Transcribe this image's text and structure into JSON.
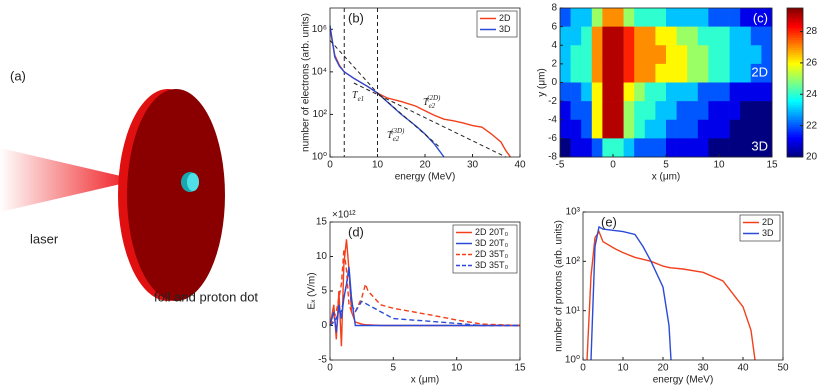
{
  "illustration": {
    "label": "(a)",
    "laser": "laser",
    "caption": "foil and proton dot"
  },
  "chart_data": [
    {
      "type": "line",
      "label": "(b)",
      "xlabel": "energy (MeV)",
      "ylabel": "number of electrons (arb. units)",
      "log_y": true,
      "legend": "upper right",
      "x": [
        0,
        1,
        2,
        3,
        5,
        8,
        10,
        12,
        15,
        18,
        20,
        22,
        24,
        26,
        28,
        30,
        32,
        34,
        36,
        37,
        38
      ],
      "series": [
        {
          "name": "2D",
          "color": "#f2401c",
          "values": [
            1000000,
            60000,
            20000,
            10000,
            5000,
            2000,
            1000,
            600,
            400,
            250,
            150,
            90,
            60,
            50,
            40,
            30,
            25,
            12,
            5,
            2,
            1
          ]
        },
        {
          "name": "3D",
          "color": "#2a4bd7",
          "values": [
            1500000,
            50000,
            18000,
            10000,
            5000,
            2000,
            1000,
            400,
            100,
            30,
            12,
            4,
            1,
            null,
            null,
            null,
            null,
            null,
            null,
            null,
            null
          ]
        }
      ],
      "fit_lines": [
        {
          "x": [
            0,
            10
          ],
          "values": [
            300000,
            1000
          ]
        },
        {
          "x": [
            5,
            37
          ],
          "values": [
            3000,
            1
          ]
        },
        {
          "x": [
            10,
            23
          ],
          "values": [
            1000,
            3
          ]
        }
      ],
      "vlines": [
        3,
        10
      ],
      "annotations": [
        {
          "base": "T",
          "sub": "e1"
        },
        {
          "base": "T",
          "sub": "e2",
          "sup": "(2D)"
        },
        {
          "base": "T",
          "sub": "e2",
          "sup": "(3D)"
        }
      ],
      "xlim": [
        0,
        40
      ],
      "xticks": [
        0,
        10,
        20,
        30,
        40
      ],
      "ylim": [
        1,
        10000000
      ],
      "yticks": [
        {
          "value": 1,
          "label": "10⁰"
        },
        {
          "value": 100,
          "label": "10²"
        },
        {
          "value": 10000,
          "label": "10⁴"
        },
        {
          "value": 1000000,
          "label": "10⁶"
        }
      ]
    },
    {
      "type": "heatmap",
      "label": "(c)",
      "xlabel": "x (μm)",
      "ylabel": "y (μm)",
      "colormap": "jet",
      "annotations": [
        "2D",
        "3D"
      ],
      "xlim": [
        -5,
        15
      ],
      "xticks": [
        -5,
        0,
        5,
        10,
        15
      ],
      "ylim": [
        -8,
        8
      ],
      "yticks": [
        -8,
        -6,
        -4,
        -2,
        0,
        2,
        4,
        6,
        8
      ],
      "clim": [
        20,
        29.5
      ],
      "cticks": [
        20,
        22,
        24,
        26,
        28
      ],
      "z": [
        [
          22,
          23,
          23,
          25,
          27,
          27,
          25,
          24,
          24,
          24,
          23,
          23,
          23,
          23,
          22,
          22,
          22,
          21,
          21,
          21
        ],
        [
          23,
          23,
          24,
          27,
          29,
          29,
          28,
          27,
          27,
          26,
          26,
          25,
          25,
          24,
          24,
          24,
          23,
          23,
          22,
          22
        ],
        [
          23,
          24,
          24,
          27,
          29,
          29,
          28,
          27,
          27,
          27,
          26,
          26,
          25,
          25,
          24,
          24,
          23,
          23,
          23,
          22
        ],
        [
          23,
          24,
          24,
          27,
          29,
          29,
          28,
          27,
          27,
          26,
          26,
          26,
          25,
          25,
          24,
          24,
          23,
          23,
          22,
          22
        ],
        [
          22,
          22,
          23,
          26,
          29,
          29,
          26,
          25,
          24,
          24,
          23,
          23,
          23,
          22,
          22,
          22,
          21,
          21,
          21,
          21
        ],
        [
          21,
          22,
          22,
          26,
          29,
          29,
          25,
          24,
          24,
          23,
          23,
          22,
          22,
          22,
          21,
          21,
          21,
          20,
          20,
          20
        ],
        [
          21,
          21,
          22,
          26,
          29,
          29,
          25,
          24,
          23,
          23,
          22,
          22,
          22,
          21,
          21,
          21,
          20,
          20,
          20,
          20
        ],
        [
          20,
          21,
          21,
          22,
          24,
          24,
          23,
          22,
          22,
          22,
          21,
          21,
          21,
          21,
          20,
          20,
          20,
          20,
          20,
          20
        ]
      ]
    },
    {
      "type": "line",
      "label": "(d)",
      "xlabel": "x (μm)",
      "ylabel": "Eₓ (V/m)",
      "y_multiplier": "×10¹²",
      "legend": "upper right",
      "x": [
        0,
        0.3,
        0.5,
        0.7,
        0.9,
        1.1,
        1.3,
        1.5,
        1.7,
        2,
        2.5,
        2.8,
        3,
        4,
        5,
        8,
        10,
        12,
        15
      ],
      "series": [
        {
          "name": "2D 20T₀",
          "color": "#f2401c",
          "dashed": false,
          "values": [
            0,
            3,
            -2,
            5,
            -3,
            9,
            12.5,
            8,
            2,
            0.5,
            0.2,
            0.1,
            0.1,
            0,
            0,
            0,
            0,
            0,
            0
          ]
        },
        {
          "name": "3D 20T₀",
          "color": "#2a4bd7",
          "dashed": false,
          "values": [
            0,
            2,
            -1,
            3,
            1,
            4,
            6,
            8.5,
            4,
            0,
            0,
            0,
            0,
            0,
            0,
            0,
            0,
            0,
            0
          ]
        },
        {
          "name": "2D 35T₀",
          "color": "#f2401c",
          "dashed": true,
          "values": [
            0,
            1,
            2,
            4,
            6,
            11,
            8,
            3,
            2,
            2,
            4,
            6,
            5,
            3,
            2.5,
            1.5,
            0.8,
            0.2,
            0
          ]
        },
        {
          "name": "3D 35T₀",
          "color": "#2a4bd7",
          "dashed": true,
          "values": [
            0,
            0.5,
            1,
            2,
            2,
            4,
            6,
            8,
            3,
            2,
            3.5,
            3.2,
            3,
            2,
            1,
            0.6,
            0.3,
            0,
            0
          ]
        }
      ],
      "xlim": [
        0,
        15
      ],
      "xticks": [
        0,
        5,
        10,
        15
      ],
      "ylim": [
        -5,
        15
      ],
      "yticks": [
        -5,
        0,
        5,
        10,
        15
      ]
    },
    {
      "type": "line",
      "label": "(e)",
      "xlabel": "energy (MeV)",
      "ylabel": "number of protons (arb. units)",
      "log_y": true,
      "legend": "upper right",
      "x": [
        1,
        2,
        3,
        4,
        5,
        8,
        10,
        13,
        15,
        17,
        20,
        21.5,
        22,
        25,
        30,
        35,
        40,
        42,
        43
      ],
      "series": [
        {
          "name": "2D",
          "color": "#f2401c",
          "values": [
            1,
            50,
            300,
            400,
            250,
            180,
            150,
            120,
            110,
            100,
            80,
            75,
            74,
            70,
            60,
            40,
            12,
            4,
            1
          ]
        },
        {
          "name": "3D",
          "color": "#2a4bd7",
          "values": [
            null,
            1,
            200,
            500,
            450,
            420,
            400,
            350,
            200,
            100,
            30,
            5,
            1,
            null,
            null,
            null,
            null,
            null,
            null
          ]
        }
      ],
      "xlim": [
        0,
        50
      ],
      "xticks": [
        0,
        10,
        20,
        30,
        40,
        50
      ],
      "ylim": [
        1,
        1000
      ],
      "yticks": [
        {
          "value": 1,
          "label": "10⁰"
        },
        {
          "value": 10,
          "label": "10¹"
        },
        {
          "value": 100,
          "label": "10²"
        },
        {
          "value": 1000,
          "label": "10³"
        }
      ]
    }
  ]
}
